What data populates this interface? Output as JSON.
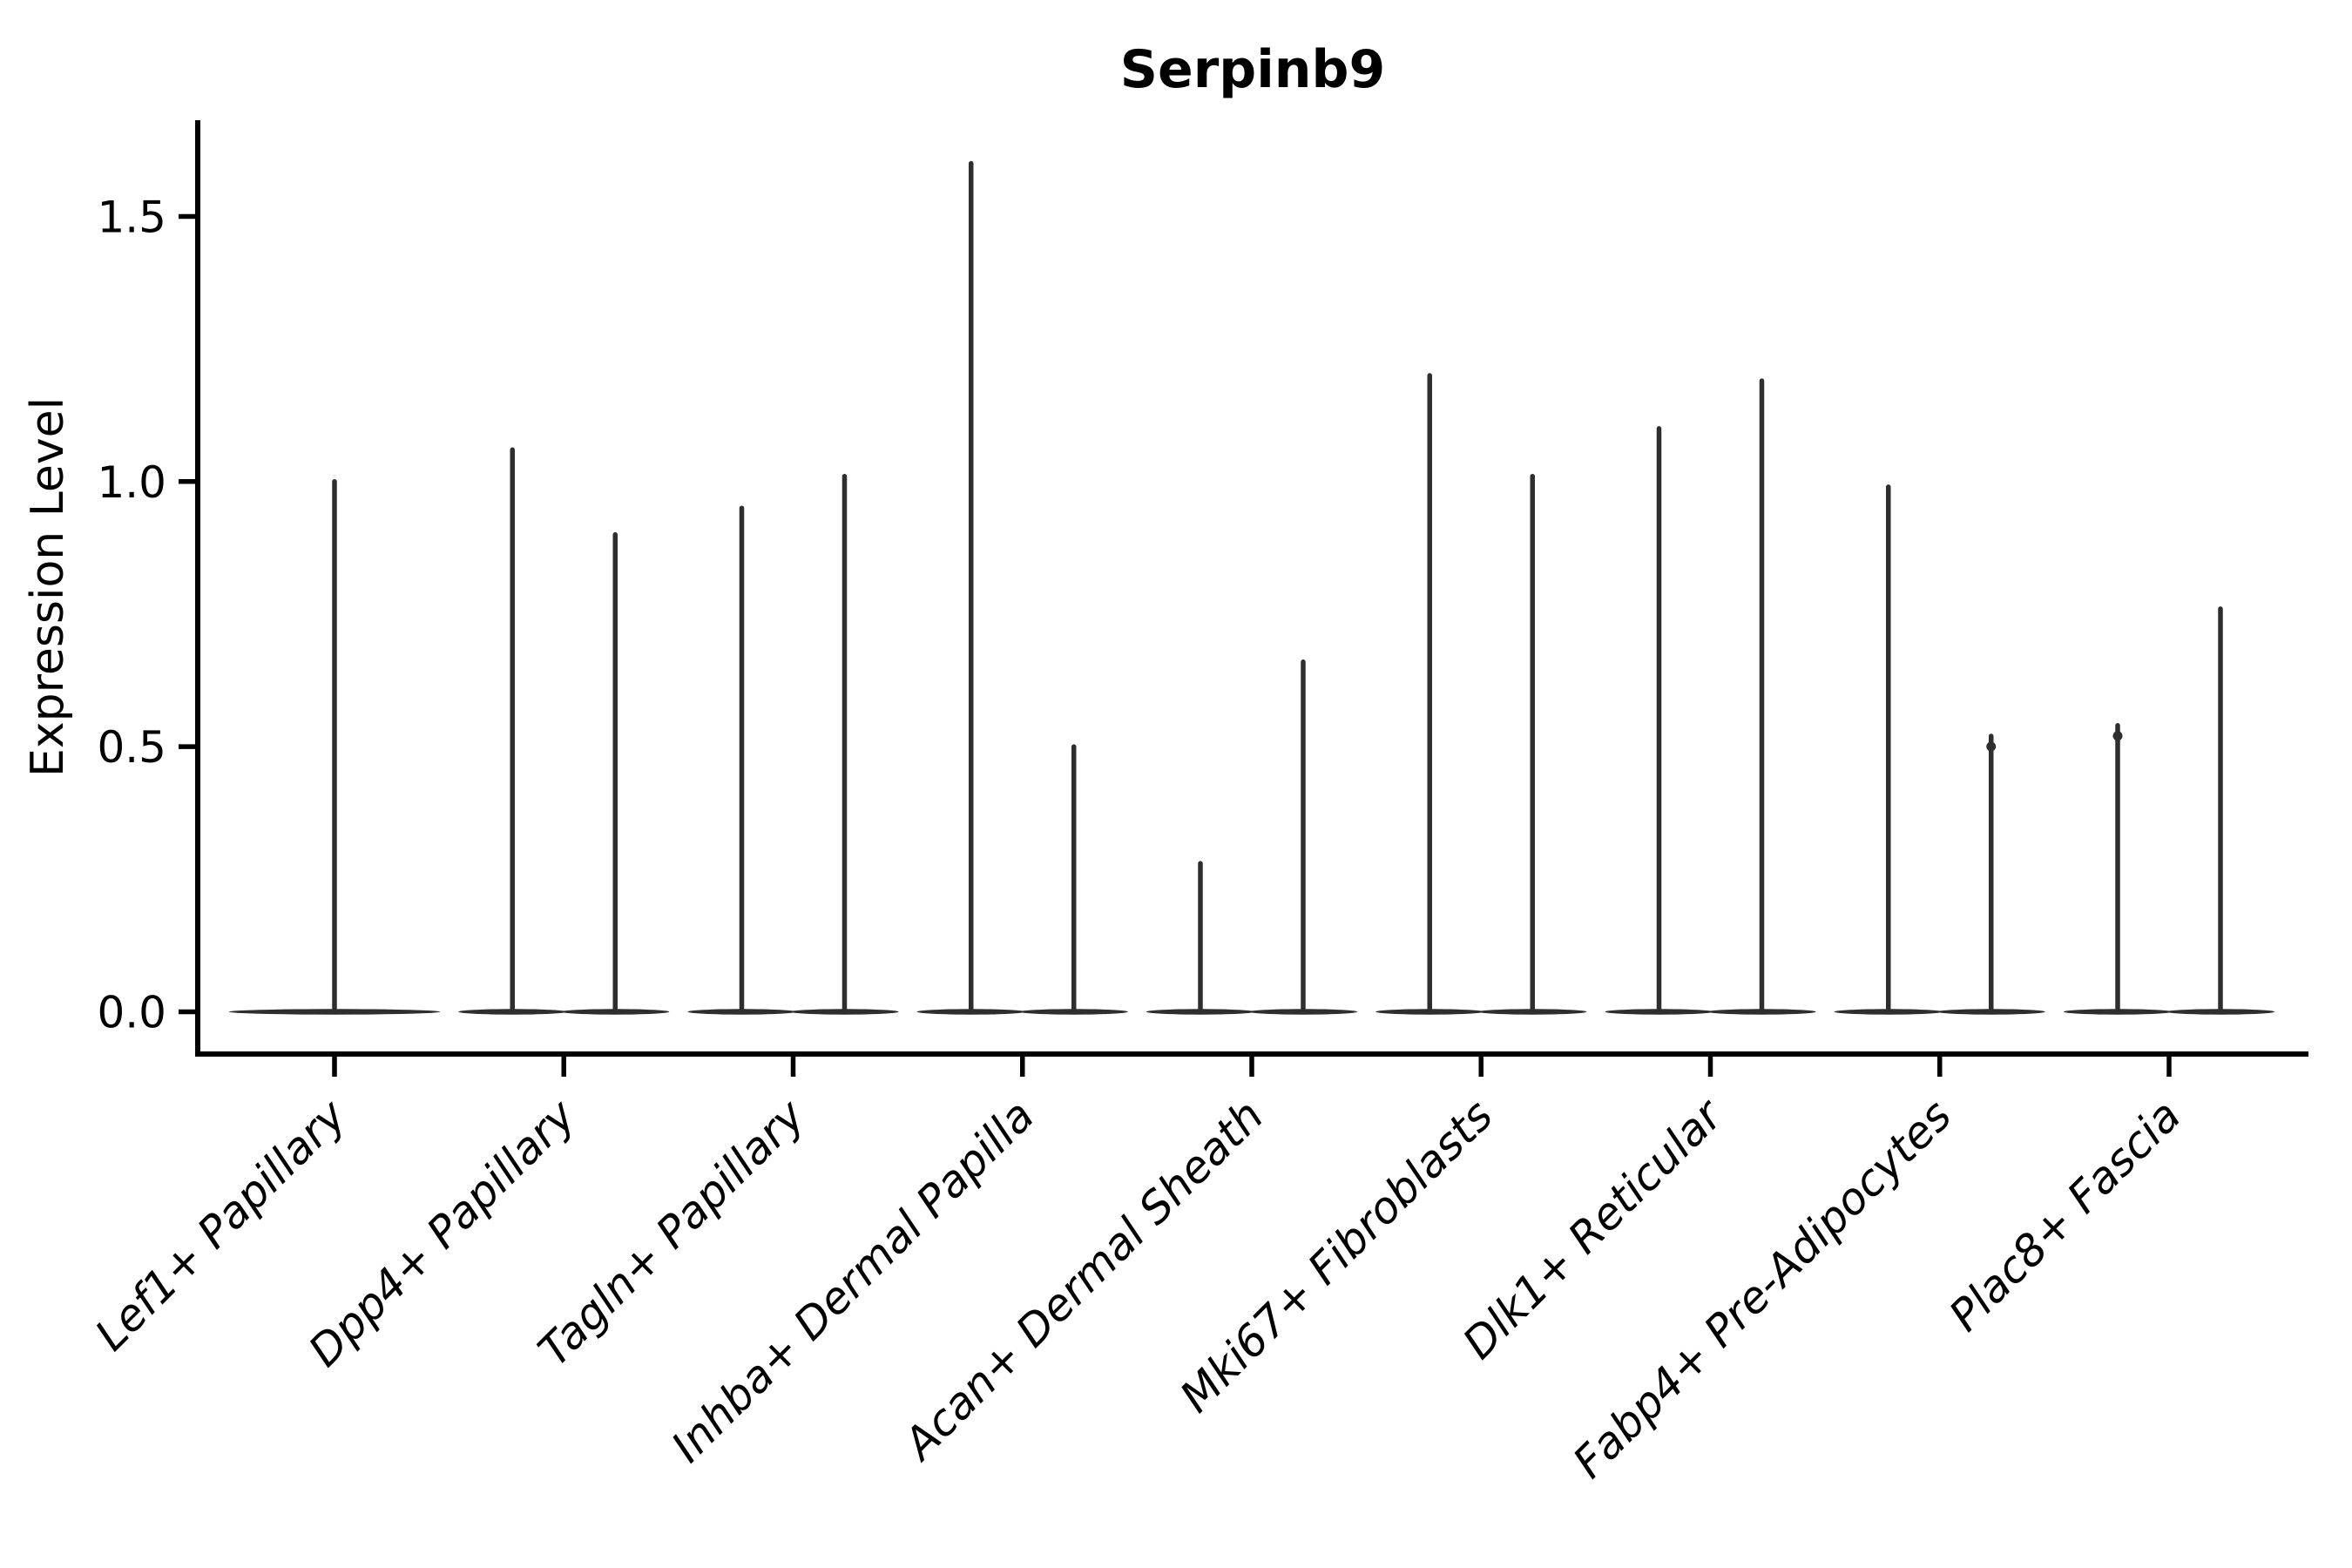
{
  "figure": {
    "title": "Serpinb9",
    "ylabel": "Expression Level"
  },
  "chart_data": {
    "type": "violin",
    "title": "Serpinb9",
    "xlabel": "",
    "ylabel": "Expression Level",
    "ylim": [
      -0.08,
      1.68
    ],
    "grid": false,
    "legend": false,
    "yticks": [
      {
        "label": "0.0",
        "value": 0.0
      },
      {
        "label": "0.5",
        "value": 0.5
      },
      {
        "label": "1.0",
        "value": 1.0
      },
      {
        "label": "1.5",
        "value": 1.5
      }
    ],
    "categories": [
      "Lef1+ Papillary",
      "Dpp4+ Papillary",
      "Tagln+ Papillary",
      "Inhba+ Dermal Papilla",
      "Acan+ Dermal Sheath",
      "Mki67+ Fibroblasts",
      "Dlk1+ Reticular",
      "Fabp4+ Pre-Adipocytes",
      "Plac8+ Fascia"
    ],
    "violins": [
      {
        "category": "Lef1+ Papillary",
        "spikes": [
          {
            "position": "center",
            "max": 1.0,
            "tip_dot": false
          }
        ]
      },
      {
        "category": "Dpp4+ Papillary",
        "spikes": [
          {
            "position": "left",
            "max": 1.06,
            "tip_dot": false
          },
          {
            "position": "right",
            "max": 0.9,
            "tip_dot": false
          }
        ]
      },
      {
        "category": "Tagln+ Papillary",
        "spikes": [
          {
            "position": "left",
            "max": 0.95,
            "tip_dot": false
          },
          {
            "position": "right",
            "max": 1.01,
            "tip_dot": false
          }
        ]
      },
      {
        "category": "Inhba+ Dermal Papilla",
        "spikes": [
          {
            "position": "left",
            "max": 1.6,
            "tip_dot": false
          },
          {
            "position": "right",
            "max": 0.5,
            "tip_dot": false
          }
        ]
      },
      {
        "category": "Acan+ Dermal Sheath",
        "spikes": [
          {
            "position": "left",
            "max": 0.28,
            "tip_dot": false
          },
          {
            "position": "right",
            "max": 0.66,
            "tip_dot": false
          }
        ]
      },
      {
        "category": "Mki67+ Fibroblasts",
        "spikes": [
          {
            "position": "left",
            "max": 1.2,
            "tip_dot": false
          },
          {
            "position": "right",
            "max": 1.01,
            "tip_dot": false
          }
        ]
      },
      {
        "category": "Dlk1+ Reticular",
        "spikes": [
          {
            "position": "left",
            "max": 1.1,
            "tip_dot": false
          },
          {
            "position": "right",
            "max": 1.19,
            "tip_dot": false
          }
        ]
      },
      {
        "category": "Fabp4+ Pre-Adipocytes",
        "spikes": [
          {
            "position": "left",
            "max": 0.99,
            "tip_dot": false
          },
          {
            "position": "right",
            "max": 0.52,
            "tip_dot": true
          }
        ]
      },
      {
        "category": "Plac8+ Fascia",
        "spikes": [
          {
            "position": "left",
            "max": 0.54,
            "tip_dot": true
          },
          {
            "position": "right",
            "max": 0.76,
            "tip_dot": false
          }
        ]
      }
    ],
    "colors": {
      "violin": "#2e2e2e",
      "axis": "#000000",
      "background": "#ffffff"
    }
  }
}
